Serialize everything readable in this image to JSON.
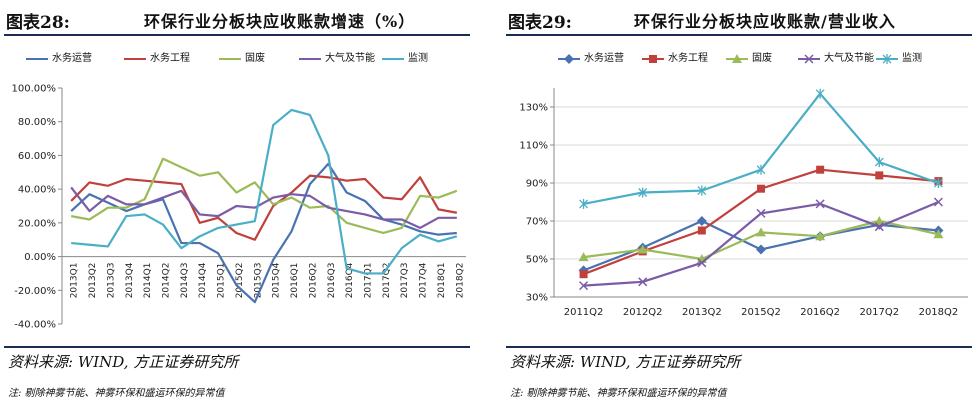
{
  "left": {
    "figure_no": "图表28:",
    "title": "环保行业分板块应收账款增速（%）",
    "source": "资料来源: WIND, 方正证券研究所",
    "note": "注: 剔除神雾节能、神雾环保和盛运环保的异常值"
  },
  "right": {
    "figure_no": "图表29:",
    "title": "环保行业分板块应收账款/营业收入",
    "source": "资料来源: WIND, 方正证券研究所",
    "note": "注: 剔除神雾节能、神雾环保和盛运环保的异常值"
  },
  "chart_data": [
    {
      "type": "line",
      "title": "环保行业分板块应收账款增速（%）",
      "ylim": [
        -40,
        100
      ],
      "ytick_labels": [
        "100.00%",
        "80.00%",
        "60.00%",
        "40.00%",
        "20.00%",
        "0.00%",
        "-20.00%",
        "-40.00%"
      ],
      "yticks": [
        100,
        80,
        60,
        40,
        20,
        0,
        -20,
        -40
      ],
      "grid": false,
      "legend": "top",
      "categories": [
        "2013Q1",
        "2013Q2",
        "2013Q3",
        "2013Q4",
        "2014Q1",
        "2014Q2",
        "2014Q3",
        "2014Q4",
        "2015Q1",
        "2015Q2",
        "2015Q3",
        "2015Q4",
        "2016Q1",
        "2016Q2",
        "2016Q3",
        "2016Q4",
        "2017Q1",
        "2017Q2",
        "2017Q3",
        "2017Q4",
        "2018Q1",
        "2018Q2"
      ],
      "series": [
        {
          "name": "水务运营",
          "color": "#4a72b0",
          "values": [
            27,
            37,
            32,
            27,
            31,
            34,
            8,
            8,
            2,
            -17,
            -27,
            -2,
            15,
            43,
            55,
            38,
            33,
            22,
            19,
            15,
            13,
            14
          ]
        },
        {
          "name": "水务工程",
          "color": "#c0403c",
          "values": [
            33,
            44,
            42,
            46,
            45,
            44,
            43,
            20,
            23,
            14,
            10,
            30,
            38,
            48,
            47,
            45,
            46,
            35,
            34,
            47,
            28,
            26
          ]
        },
        {
          "name": "固废",
          "color": "#9bbb59",
          "values": [
            24,
            22,
            29,
            29,
            34,
            58,
            53,
            48,
            50,
            38,
            44,
            31,
            35,
            29,
            30,
            20,
            17,
            14,
            17,
            36,
            35,
            39
          ]
        },
        {
          "name": "大气及节能",
          "color": "#7b5ba6",
          "values": [
            41,
            27,
            36,
            31,
            31,
            35,
            39,
            25,
            24,
            30,
            29,
            35,
            37,
            36,
            29,
            27,
            25,
            22,
            22,
            17,
            23,
            23
          ]
        },
        {
          "name": "监测",
          "color": "#4aaec6",
          "values": [
            8,
            7,
            6,
            24,
            25,
            19,
            5,
            12,
            17,
            19,
            21,
            78,
            87,
            84,
            60,
            -7,
            -10,
            -10,
            5,
            13,
            9,
            12
          ]
        }
      ]
    },
    {
      "type": "line",
      "title": "环保行业分板块应收账款/营业收入",
      "ylim": [
        30,
        140
      ],
      "ytick_labels": [
        "130%",
        "110%",
        "90%",
        "70%",
        "50%",
        "30%"
      ],
      "yticks": [
        130,
        110,
        90,
        70,
        50,
        30
      ],
      "grid": true,
      "legend": "top",
      "categories": [
        "2011Q2",
        "2012Q2",
        "2013Q2",
        "2015Q2",
        "2016Q2",
        "2017Q2",
        "2018Q2"
      ],
      "series": [
        {
          "name": "水务运营",
          "color": "#4a72b0",
          "marker": "diamond",
          "values": [
            44,
            56,
            70,
            55,
            62,
            68,
            65
          ]
        },
        {
          "name": "水务工程",
          "color": "#c0403c",
          "marker": "square",
          "values": [
            42,
            54,
            65,
            87,
            97,
            94,
            91
          ]
        },
        {
          "name": "固废",
          "color": "#9bbb59",
          "marker": "triangle",
          "values": [
            51,
            55,
            50,
            64,
            62,
            70,
            63
          ]
        },
        {
          "name": "大气及节能",
          "color": "#7b5ba6",
          "marker": "x",
          "values": [
            36,
            38,
            48,
            74,
            79,
            67,
            80
          ]
        },
        {
          "name": "监测",
          "color": "#4aaec6",
          "marker": "star",
          "values": [
            79,
            85,
            86,
            97,
            137,
            101,
            90
          ]
        }
      ]
    }
  ]
}
